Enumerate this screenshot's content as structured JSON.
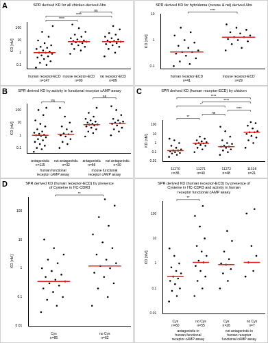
{
  "chart_data": [
    {
      "type": "scatter",
      "panel_label": "A",
      "title": "SPR derived KD for all chicken-derived Abs",
      "y_label": "KD [nM]",
      "categories": [
        [
          "human receptor-ECD",
          "n=147"
        ],
        [
          "mouse receptor-ECD",
          "n=90"
        ],
        [
          "rat receptor-ECD",
          "n=89"
        ]
      ],
      "values": [
        [
          0.06,
          0.1,
          0.15,
          0.2,
          0.3,
          0.4,
          0.5,
          0.6,
          0.8,
          1,
          1,
          1.2,
          1.5,
          2,
          2.5,
          3,
          4,
          6,
          10,
          20,
          50,
          150
        ],
        [
          0.8,
          1.5,
          2,
          3,
          4,
          5,
          6,
          7,
          8,
          8,
          9,
          10,
          12,
          15,
          20,
          30,
          50,
          100,
          200
        ],
        [
          0.5,
          1,
          2,
          3,
          4,
          5,
          6,
          7,
          8,
          9,
          10,
          12,
          15,
          20,
          30,
          40,
          80,
          150
        ]
      ],
      "medians": [
        1,
        8,
        8
      ],
      "annotations": [
        {
          "from": 0,
          "to": 1,
          "label": "****"
        },
        {
          "from": 0,
          "to": 2,
          "label": "****"
        },
        {
          "from": 1,
          "to": 2,
          "label": "ns"
        }
      ],
      "color": "#000000",
      "log": "y",
      "grid": false,
      "ylim": [
        0.05,
        300
      ],
      "yticks": [
        0.1,
        1,
        10,
        100
      ]
    },
    {
      "type": "scatter",
      "title": "SPR derived KD for hybridoma (mouse & rat) derived Abs",
      "y_label": "KD [nM]",
      "categories": [
        [
          "human receptor-ECD",
          "n=41"
        ],
        [
          "mouse receptor-ECD",
          "n=29"
        ]
      ],
      "values": [
        [
          0.1,
          0.12,
          0.15,
          0.2,
          0.25,
          0.3,
          0.35,
          0.35,
          0.4,
          0.5,
          0.6,
          0.8,
          1,
          1.5,
          2,
          3
        ],
        [
          0.4,
          0.5,
          0.7,
          0.9,
          1,
          1.1,
          1.3,
          1.3,
          1.5,
          1.8,
          2,
          2.5,
          3,
          4
        ]
      ],
      "medians": [
        0.35,
        1.3
      ],
      "annotations": [
        {
          "from": 0,
          "to": 1,
          "label": "****"
        }
      ],
      "color": "#000000",
      "log": "y",
      "grid": false,
      "ylim": [
        0.08,
        10
      ],
      "yticks": [
        0.1,
        1,
        10
      ]
    },
    {
      "type": "scatter",
      "panel_label": "B",
      "title": "SPR derived KD by activity in functional receptor cAMP assay",
      "y_label": "KD [nM]",
      "categories": [
        [
          "antagonistic",
          "n=115"
        ],
        [
          "not antagonistic",
          "n=32"
        ],
        [
          "antagonistic",
          "n=66"
        ],
        [
          "not antagonistic",
          "n=30"
        ]
      ],
      "group_labels": [
        {
          "from": 0,
          "to": 1,
          "label": [
            "human functional",
            "receptor cAMP assay"
          ]
        },
        {
          "from": 2,
          "to": 3,
          "label": [
            "mouse functional",
            "receptor cAMP assay"
          ]
        }
      ],
      "values": [
        [
          0.05,
          0.08,
          0.1,
          0.15,
          0.2,
          0.3,
          0.4,
          0.5,
          0.7,
          0.9,
          1,
          1.1,
          1.3,
          1.6,
          2,
          3,
          5,
          8,
          15,
          40,
          100,
          150
        ],
        [
          0.1,
          0.2,
          0.3,
          0.5,
          0.8,
          1,
          1.2,
          1.4,
          2,
          3,
          5,
          10,
          30,
          150
        ],
        [
          0.8,
          1.5,
          2,
          3,
          4,
          5,
          6,
          7,
          7,
          8,
          10,
          12,
          15,
          20,
          30,
          60,
          150
        ],
        [
          1,
          2,
          3,
          4,
          6,
          8,
          9,
          10,
          12,
          15,
          20,
          40,
          100,
          200
        ]
      ],
      "medians": [
        1,
        1.2,
        7,
        9
      ],
      "annotations": [
        {
          "from": 0,
          "to": 1,
          "label": "ns"
        },
        {
          "from": 2,
          "to": 3,
          "label": "ns"
        }
      ],
      "color": "#000000",
      "log": "y",
      "grid": false,
      "ylim": [
        0.04,
        300
      ],
      "yticks": [
        0.1,
        1,
        10,
        100
      ]
    },
    {
      "type": "scatter",
      "panel_label": "C",
      "title": "SPR derived KD (human receptor-ECD) by chicken",
      "y_label": "KD [nM]",
      "categories": [
        [
          "11270",
          "n=36"
        ],
        [
          "11271",
          "n=40"
        ],
        [
          "11272",
          "n=48"
        ],
        [
          "11316",
          "n=21"
        ]
      ],
      "values": [
        [
          0.03,
          0.05,
          0.07,
          0.08,
          0.1,
          0.12,
          0.15,
          0.15,
          0.2,
          0.3,
          0.5,
          1,
          2,
          3
        ],
        [
          0.1,
          0.2,
          0.3,
          0.5,
          0.6,
          0.8,
          0.9,
          1,
          1.2,
          1.5,
          2,
          3,
          5
        ],
        [
          0.05,
          0.1,
          0.15,
          0.2,
          0.3,
          0.4,
          0.4,
          0.5,
          0.8,
          1,
          2,
          5,
          20,
          60
        ],
        [
          0.3,
          1,
          2,
          4,
          6,
          10,
          15,
          15,
          20,
          40,
          80,
          150,
          200
        ]
      ],
      "medians": [
        0.15,
        0.9,
        0.4,
        15
      ],
      "annotations": [
        {
          "from": 0,
          "to": 1,
          "label": "**"
        },
        {
          "from": 1,
          "to": 2,
          "label": "ns"
        },
        {
          "from": 2,
          "to": 3,
          "label": "****"
        },
        {
          "from": 0,
          "to": 2,
          "label": "*"
        },
        {
          "from": 1,
          "to": 3,
          "label": "****"
        },
        {
          "from": 0,
          "to": 3,
          "label": "****"
        }
      ],
      "color": "#000000",
      "log": "y",
      "grid": false,
      "ylim": [
        0.01,
        300
      ],
      "yticks": [
        0.01,
        0.1,
        1,
        10,
        100
      ]
    },
    {
      "type": "scatter",
      "panel_label": "D",
      "title": [
        "SPR derived KD (human receptor-ECD) by presence",
        "of Cysteine in HC-CDR3"
      ],
      "y_label": "KD [nM]",
      "categories": [
        [
          "Cys",
          "n=85"
        ],
        [
          "no Cys",
          "n=62"
        ]
      ],
      "values": [
        [
          0.03,
          0.05,
          0.08,
          0.1,
          0.15,
          0.2,
          0.25,
          0.3,
          0.35,
          0.4,
          0.5,
          0.6,
          0.8,
          1,
          1.5,
          2,
          3,
          5,
          10
        ],
        [
          0.05,
          0.1,
          0.2,
          0.3,
          0.5,
          0.7,
          1,
          1.2,
          1.5,
          2,
          3,
          5,
          8,
          15,
          30,
          60,
          150,
          250
        ]
      ],
      "medians": [
        0.35,
        1.2
      ],
      "annotations": [
        {
          "from": 0,
          "to": 1,
          "label": "**"
        }
      ],
      "color": "#000000",
      "log": "y",
      "grid": false,
      "ylim": [
        0.01,
        300
      ],
      "yticks": [
        0.01,
        0.1,
        1,
        10,
        100
      ]
    },
    {
      "type": "scatter",
      "title": [
        "SPR derived KD (human receptor-ECD) by presence of",
        "Cysteine in HC-CDR3 and activity in human",
        "receptor functional cAMP assay"
      ],
      "y_label": "KD [nM]",
      "categories": [
        [
          "Cys",
          "n=60"
        ],
        [
          "no Cys",
          "n=55"
        ],
        [
          "Cys",
          "n=26"
        ],
        [
          "no Cys",
          "n=7"
        ]
      ],
      "group_labels": [
        {
          "from": 0,
          "to": 1,
          "label": [
            "antagonistic in",
            "human functional",
            "receptor cAMP assay"
          ]
        },
        {
          "from": 2,
          "to": 3,
          "label": [
            "not antagonistic in",
            "human receptor",
            "functional cAMP assay"
          ]
        }
      ],
      "values": [
        [
          0.03,
          0.05,
          0.08,
          0.1,
          0.15,
          0.2,
          0.25,
          0.3,
          0.4,
          0.5,
          0.7,
          1,
          2,
          4
        ],
        [
          0.05,
          0.1,
          0.2,
          0.3,
          0.5,
          0.8,
          1.1,
          1.3,
          2,
          3,
          5,
          10,
          30,
          80,
          200
        ],
        [
          0.1,
          0.2,
          0.4,
          0.6,
          0.9,
          1,
          1.5,
          3,
          8,
          20
        ],
        [
          0.3,
          0.5,
          1.1,
          2,
          5,
          100,
          150
        ]
      ],
      "medians": [
        0.3,
        1.1,
        0.9,
        1.1
      ],
      "annotations": [
        {
          "from": 0,
          "to": 1,
          "label": "**"
        }
      ],
      "color": "#000000",
      "log": "y",
      "grid": false,
      "ylim": [
        0.01,
        300
      ],
      "yticks": [
        0.01,
        0.1,
        1,
        10,
        100
      ]
    }
  ]
}
